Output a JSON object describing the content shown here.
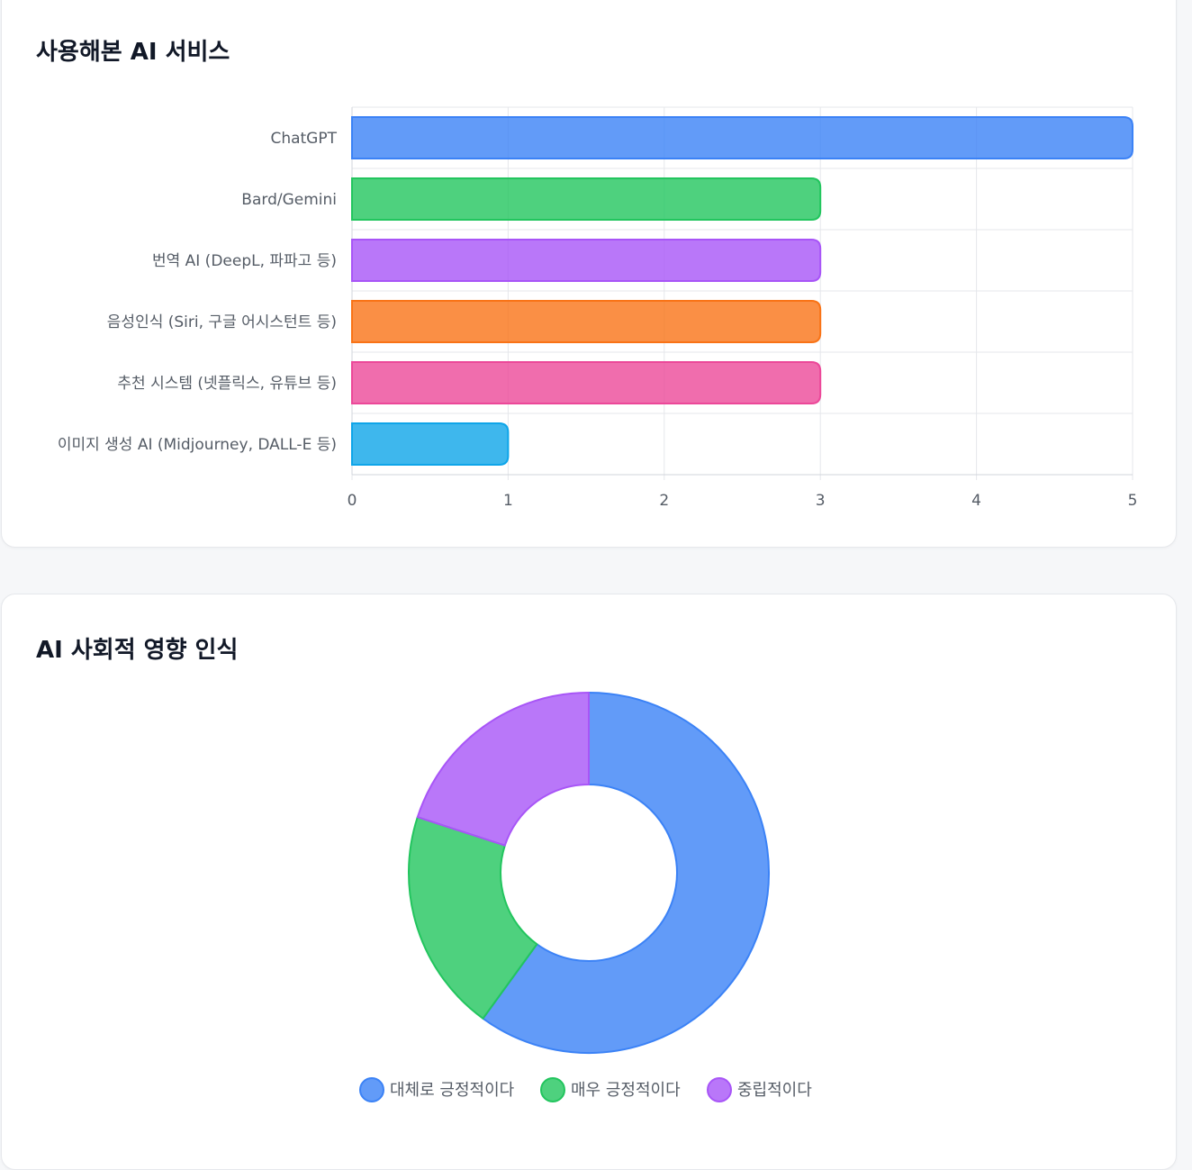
{
  "charts": {
    "bar": {
      "title": "사용해본 AI 서비스"
    },
    "donut": {
      "title": "AI 사회적 영향 인식"
    }
  },
  "chart_data": [
    {
      "type": "bar",
      "orientation": "horizontal",
      "title": "사용해본 AI 서비스",
      "categories": [
        "ChatGPT",
        "Bard/Gemini",
        "번역 AI (DeepL, 파파고 등)",
        "음성인식 (Siri, 구글 어시스턴트 등)",
        "추천 시스템 (넷플릭스, 유튜브 등)",
        "이미지 생성 AI (Midjourney, DALL-E 등)"
      ],
      "values": [
        5,
        3,
        3,
        3,
        3,
        1
      ],
      "colors": [
        "#3b82f6",
        "#22c55e",
        "#a855f7",
        "#f97316",
        "#ec4899",
        "#0ea5e9"
      ],
      "xlim": [
        0,
        5
      ],
      "xticks": [
        "0",
        "1",
        "2",
        "3",
        "4",
        "5"
      ],
      "grid": true,
      "legend": "none"
    },
    {
      "type": "pie",
      "subtype": "doughnut",
      "title": "AI 사회적 영향 인식",
      "labels": [
        "대체로 긍정적이다",
        "매우 긍정적이다",
        "중립적이다"
      ],
      "values": [
        3,
        1,
        1
      ],
      "colors": [
        "#3b82f6",
        "#22c55e",
        "#a855f7"
      ],
      "legend": "bottom"
    }
  ]
}
